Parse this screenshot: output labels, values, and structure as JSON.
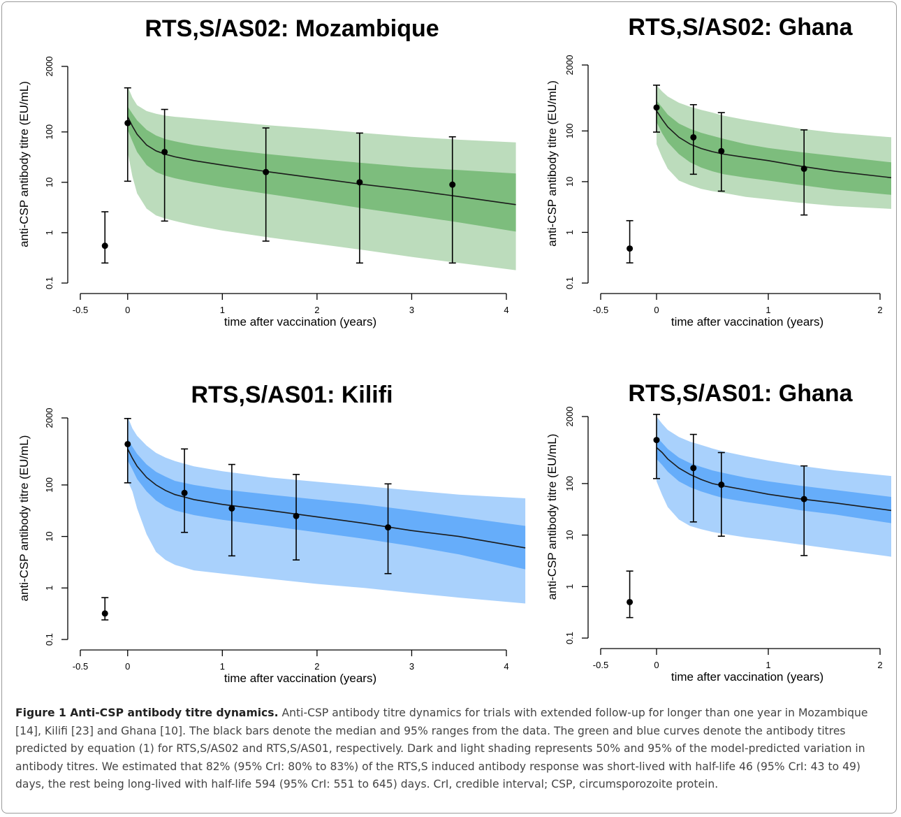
{
  "figure": {
    "caption_label": "Figure 1 Anti-CSP antibody titre dynamics.",
    "caption_text": "Anti-CSP antibody titre dynamics for trials with extended follow-up for longer than one year in Mozambique [14], Kilifi [23] and Ghana [10]. The black bars denote the median and 95% ranges from the data. The green and blue curves denote the antibody titres predicted by equation (1) for RTS,S/AS02 and RTS,S/AS01, respectively. Dark and light shading represents 50% and 95% of the model-predicted variation in antibody titres. We estimated that 82% (95% CrI: 80% to 83%) of the RTS,S induced antibody response was short-lived with half-life 46 (95% CrI: 43 to 49) days, the rest being long-lived with half-life 594 (95% CrI: 551 to 645) days. CrI, credible interval; CSP, circumsporozoite protein."
  },
  "colors": {
    "green_outer": "#bcdcbc",
    "green_inner": "#7dbd7d",
    "blue_outer": "#a9d1fc",
    "blue_inner": "#66adfa",
    "median_line": "#1b1b1b",
    "points": "#000000"
  },
  "chart_data": [
    {
      "type": "line",
      "title": "RTS,S/AS02: Mozambique",
      "xlabel": "time after vaccination (years)",
      "ylabel": "anti-CSP antibody titre (EU/mL)",
      "xlim": [
        -0.5,
        4
      ],
      "ylim": [
        0.1,
        2000
      ],
      "yscale": "log",
      "x_ticks": [
        -0.5,
        0,
        1,
        2,
        3,
        4
      ],
      "x_tick_labels": [
        "-0.5",
        "0",
        "1",
        "2",
        "3",
        "4"
      ],
      "y_ticks": [
        0.1,
        1,
        10,
        100,
        2000
      ],
      "y_tick_labels": [
        "0.1",
        "1",
        "10",
        "100",
        "2000"
      ],
      "band_end_x": 4.1,
      "palette": "green",
      "grid": false,
      "model": {
        "x": [
          0,
          0.05,
          0.1,
          0.2,
          0.3,
          0.4,
          0.5,
          0.7,
          1,
          1.5,
          2,
          2.5,
          3,
          3.5,
          4.1
        ],
        "median": [
          200,
          130,
          90,
          55,
          42,
          36,
          32,
          27,
          22,
          16,
          12,
          9,
          7,
          5.2,
          3.6
        ],
        "p25": [
          110,
          65,
          40,
          22,
          16,
          13.5,
          12,
          10,
          8,
          5.8,
          4.2,
          3,
          2.2,
          1.6,
          1.05
        ],
        "p75": [
          320,
          230,
          170,
          110,
          85,
          72,
          65,
          55,
          46,
          36,
          29,
          24,
          20,
          17.5,
          15
        ],
        "p2_5": [
          40,
          13,
          6,
          3,
          2.2,
          1.9,
          1.7,
          1.4,
          1.1,
          0.8,
          0.6,
          0.45,
          0.33,
          0.25,
          0.18
        ],
        "p97_5": [
          800,
          480,
          340,
          260,
          230,
          210,
          200,
          185,
          165,
          135,
          115,
          95,
          80,
          70,
          62
        ]
      },
      "data_points": [
        {
          "x": -0.24,
          "y": 0.55,
          "lo": 0.25,
          "hi": 2.6
        },
        {
          "x": 0,
          "y": 150,
          "lo": 10.5,
          "hi": 750
        },
        {
          "x": 0.39,
          "y": 40,
          "lo": 1.7,
          "hi": 280
        },
        {
          "x": 1.46,
          "y": 16,
          "lo": 0.68,
          "hi": 120
        },
        {
          "x": 2.45,
          "y": 10,
          "lo": 0.25,
          "hi": 95
        },
        {
          "x": 3.43,
          "y": 9,
          "lo": 0.25,
          "hi": 80
        }
      ]
    },
    {
      "type": "line",
      "title": "RTS,S/AS02: Ghana",
      "xlabel": "time after vaccination (years)",
      "ylabel": "anti-CSP antibody titre (EU/mL)",
      "xlim": [
        -0.5,
        2
      ],
      "ylim": [
        0.1,
        2000
      ],
      "yscale": "log",
      "x_ticks": [
        -0.5,
        0,
        1,
        2
      ],
      "x_tick_labels": [
        "-0.5",
        "0",
        "1",
        "2"
      ],
      "y_ticks": [
        0.1,
        1,
        10,
        100,
        2000
      ],
      "y_tick_labels": [
        "0.1",
        "1",
        "10",
        "100",
        "2000"
      ],
      "band_end_x": 2.1,
      "palette": "green",
      "grid": false,
      "model": {
        "x": [
          0,
          0.05,
          0.1,
          0.2,
          0.3,
          0.4,
          0.5,
          0.6,
          0.8,
          1,
          1.3,
          1.6,
          2.1
        ],
        "median": [
          250,
          170,
          120,
          75,
          55,
          45,
          39,
          35,
          30,
          26,
          20,
          16,
          12
        ],
        "p25": [
          150,
          90,
          60,
          35,
          24,
          19,
          16,
          14,
          12,
          10.5,
          8.5,
          7,
          5.5
        ],
        "p75": [
          400,
          290,
          210,
          140,
          110,
          92,
          80,
          70,
          55,
          46,
          38,
          32,
          24
        ],
        "p2_5": [
          55,
          30,
          18,
          10.5,
          8.5,
          7.2,
          6.5,
          6,
          5,
          4.5,
          3.8,
          3.3,
          2.9
        ],
        "p97_5": [
          800,
          600,
          480,
          360,
          300,
          260,
          230,
          200,
          165,
          140,
          110,
          92,
          75
        ]
      },
      "data_points": [
        {
          "x": -0.24,
          "y": 0.48,
          "lo": 0.25,
          "hi": 1.7
        },
        {
          "x": 0,
          "y": 290,
          "lo": 95,
          "hi": 800
        },
        {
          "x": 0.33,
          "y": 75,
          "lo": 14,
          "hi": 330
        },
        {
          "x": 0.58,
          "y": 40,
          "lo": 6.5,
          "hi": 230
        },
        {
          "x": 1.32,
          "y": 18,
          "lo": 2.2,
          "hi": 105
        }
      ]
    },
    {
      "type": "line",
      "title": "RTS,S/AS01: Kilifi",
      "xlabel": "time after vaccination (years)",
      "ylabel": "anti-CSP antibody titre (EU/mL)",
      "xlim": [
        -0.5,
        4
      ],
      "ylim": [
        0.1,
        2000
      ],
      "yscale": "log",
      "x_ticks": [
        -0.5,
        0,
        1,
        2,
        3,
        4
      ],
      "x_tick_labels": [
        "-0.5",
        "0",
        "1",
        "2",
        "3",
        "4"
      ],
      "y_ticks": [
        0.1,
        1,
        10,
        100,
        2000
      ],
      "y_tick_labels": [
        "0.1",
        "1",
        "10",
        "100",
        "2000"
      ],
      "band_end_x": 4.2,
      "palette": "blue",
      "grid": false,
      "model": {
        "x": [
          0,
          0.05,
          0.1,
          0.2,
          0.3,
          0.4,
          0.5,
          0.7,
          1,
          1.5,
          2,
          2.5,
          3,
          3.5,
          4.2
        ],
        "median": [
          500,
          330,
          230,
          140,
          100,
          78,
          65,
          52,
          42,
          32,
          24,
          18,
          13,
          10,
          6
        ],
        "p25": [
          300,
          200,
          130,
          75,
          50,
          38,
          32,
          26,
          21,
          16,
          12,
          9,
          6.5,
          4.5,
          2.3
        ],
        "p75": [
          800,
          550,
          400,
          250,
          180,
          145,
          120,
          100,
          82,
          65,
          52,
          42,
          32,
          24,
          16
        ],
        "p2_5": [
          120,
          75,
          35,
          11,
          5,
          3.5,
          2.8,
          2.2,
          1.9,
          1.5,
          1.2,
          1,
          0.8,
          0.65,
          0.5
        ],
        "p97_5": [
          2100,
          1250,
          900,
          580,
          420,
          340,
          290,
          230,
          185,
          140,
          115,
          95,
          78,
          65,
          55
        ]
      },
      "data_points": [
        {
          "x": -0.24,
          "y": 0.32,
          "lo": 0.24,
          "hi": 0.65
        },
        {
          "x": 0,
          "y": 620,
          "lo": 110,
          "hi": 1950
        },
        {
          "x": 0.6,
          "y": 70,
          "lo": 12,
          "hi": 500
        },
        {
          "x": 1.1,
          "y": 35,
          "lo": 4.2,
          "hi": 250
        },
        {
          "x": 1.78,
          "y": 25,
          "lo": 3.5,
          "hi": 160
        },
        {
          "x": 2.75,
          "y": 15,
          "lo": 1.9,
          "hi": 105
        }
      ]
    },
    {
      "type": "line",
      "title": "RTS,S/AS01: Ghana",
      "xlabel": "time after vaccination (years)",
      "ylabel": "anti-CSP antibody titre (EU/mL)",
      "xlim": [
        -0.5,
        2
      ],
      "ylim": [
        0.1,
        2000
      ],
      "yscale": "log",
      "x_ticks": [
        -0.5,
        0,
        1,
        2
      ],
      "x_tick_labels": [
        "-0.5",
        "0",
        "1",
        "2"
      ],
      "y_ticks": [
        0.1,
        1,
        10,
        100,
        2000
      ],
      "y_tick_labels": [
        "0.1",
        "1",
        "10",
        "100",
        "2000"
      ],
      "band_end_x": 2.1,
      "palette": "blue",
      "grid": false,
      "model": {
        "x": [
          0,
          0.05,
          0.1,
          0.2,
          0.3,
          0.4,
          0.5,
          0.6,
          0.8,
          1,
          1.3,
          1.6,
          2.1
        ],
        "median": [
          500,
          400,
          300,
          200,
          150,
          120,
          100,
          90,
          75,
          62,
          50,
          42,
          30
        ],
        "p25": [
          300,
          230,
          170,
          110,
          85,
          70,
          60,
          52,
          44,
          38,
          30,
          25,
          17
        ],
        "p75": [
          800,
          620,
          470,
          320,
          250,
          210,
          180,
          160,
          130,
          110,
          90,
          75,
          55
        ],
        "p2_5": [
          110,
          60,
          35,
          20,
          15,
          13,
          11.5,
          10.5,
          9,
          8,
          6.5,
          5.3,
          3.8
        ],
        "p97_5": [
          2000,
          1450,
          1100,
          800,
          650,
          560,
          480,
          420,
          340,
          280,
          220,
          180,
          140
        ]
      },
      "data_points": [
        {
          "x": -0.24,
          "y": 0.5,
          "lo": 0.25,
          "hi": 2
        },
        {
          "x": 0,
          "y": 700,
          "lo": 125,
          "hi": 2200
        },
        {
          "x": 0.33,
          "y": 200,
          "lo": 18,
          "hi": 900
        },
        {
          "x": 0.58,
          "y": 95,
          "lo": 9.5,
          "hi": 400
        },
        {
          "x": 1.32,
          "y": 50,
          "lo": 4,
          "hi": 220
        }
      ]
    }
  ]
}
